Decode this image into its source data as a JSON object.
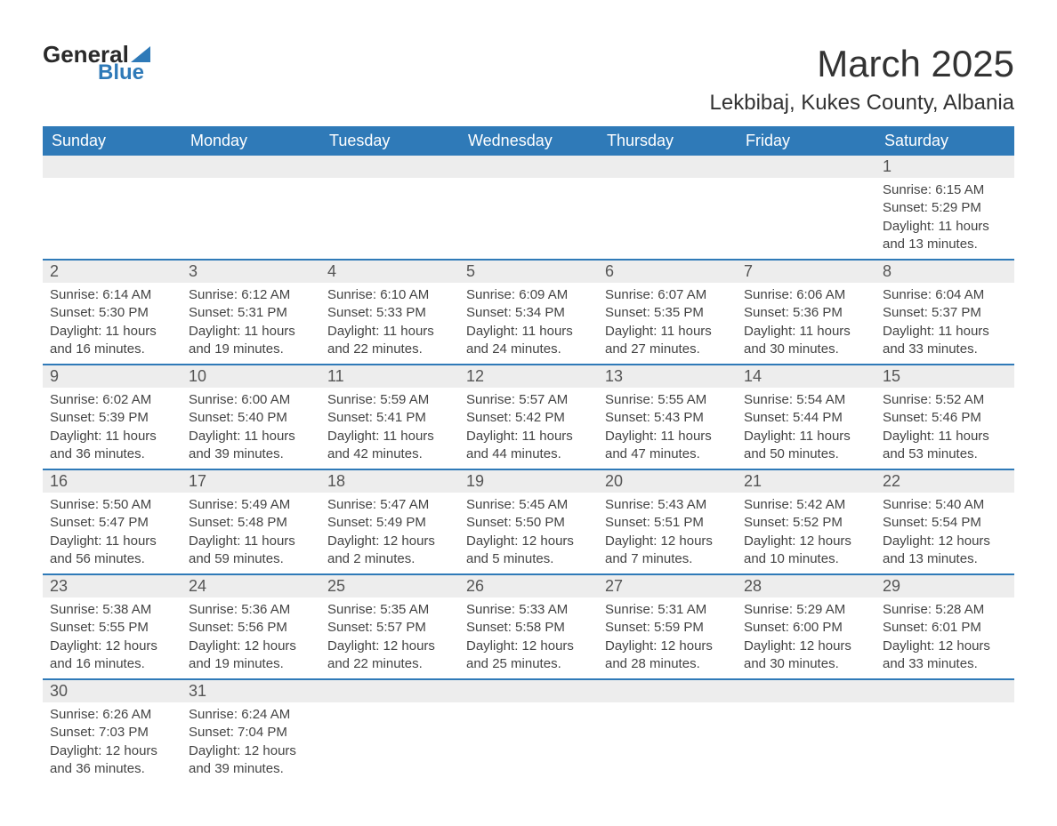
{
  "logo": {
    "word1": "General",
    "word2": "Blue"
  },
  "title": "March 2025",
  "location": "Lekbibaj, Kukes County, Albania",
  "colors": {
    "header_bg": "#2f7ab8",
    "header_text": "#ffffff",
    "daynum_bg": "#ededed",
    "border": "#2f7ab8",
    "body_bg": "#ffffff",
    "text": "#333333"
  },
  "fonts": {
    "title_size": 42,
    "location_size": 24,
    "header_size": 18,
    "daynum_size": 18,
    "detail_size": 15
  },
  "day_headers": [
    "Sunday",
    "Monday",
    "Tuesday",
    "Wednesday",
    "Thursday",
    "Friday",
    "Saturday"
  ],
  "weeks": [
    [
      null,
      null,
      null,
      null,
      null,
      null,
      {
        "n": "1",
        "sunrise": "Sunrise: 6:15 AM",
        "sunset": "Sunset: 5:29 PM",
        "dl1": "Daylight: 11 hours",
        "dl2": "and 13 minutes."
      }
    ],
    [
      {
        "n": "2",
        "sunrise": "Sunrise: 6:14 AM",
        "sunset": "Sunset: 5:30 PM",
        "dl1": "Daylight: 11 hours",
        "dl2": "and 16 minutes."
      },
      {
        "n": "3",
        "sunrise": "Sunrise: 6:12 AM",
        "sunset": "Sunset: 5:31 PM",
        "dl1": "Daylight: 11 hours",
        "dl2": "and 19 minutes."
      },
      {
        "n": "4",
        "sunrise": "Sunrise: 6:10 AM",
        "sunset": "Sunset: 5:33 PM",
        "dl1": "Daylight: 11 hours",
        "dl2": "and 22 minutes."
      },
      {
        "n": "5",
        "sunrise": "Sunrise: 6:09 AM",
        "sunset": "Sunset: 5:34 PM",
        "dl1": "Daylight: 11 hours",
        "dl2": "and 24 minutes."
      },
      {
        "n": "6",
        "sunrise": "Sunrise: 6:07 AM",
        "sunset": "Sunset: 5:35 PM",
        "dl1": "Daylight: 11 hours",
        "dl2": "and 27 minutes."
      },
      {
        "n": "7",
        "sunrise": "Sunrise: 6:06 AM",
        "sunset": "Sunset: 5:36 PM",
        "dl1": "Daylight: 11 hours",
        "dl2": "and 30 minutes."
      },
      {
        "n": "8",
        "sunrise": "Sunrise: 6:04 AM",
        "sunset": "Sunset: 5:37 PM",
        "dl1": "Daylight: 11 hours",
        "dl2": "and 33 minutes."
      }
    ],
    [
      {
        "n": "9",
        "sunrise": "Sunrise: 6:02 AM",
        "sunset": "Sunset: 5:39 PM",
        "dl1": "Daylight: 11 hours",
        "dl2": "and 36 minutes."
      },
      {
        "n": "10",
        "sunrise": "Sunrise: 6:00 AM",
        "sunset": "Sunset: 5:40 PM",
        "dl1": "Daylight: 11 hours",
        "dl2": "and 39 minutes."
      },
      {
        "n": "11",
        "sunrise": "Sunrise: 5:59 AM",
        "sunset": "Sunset: 5:41 PM",
        "dl1": "Daylight: 11 hours",
        "dl2": "and 42 minutes."
      },
      {
        "n": "12",
        "sunrise": "Sunrise: 5:57 AM",
        "sunset": "Sunset: 5:42 PM",
        "dl1": "Daylight: 11 hours",
        "dl2": "and 44 minutes."
      },
      {
        "n": "13",
        "sunrise": "Sunrise: 5:55 AM",
        "sunset": "Sunset: 5:43 PM",
        "dl1": "Daylight: 11 hours",
        "dl2": "and 47 minutes."
      },
      {
        "n": "14",
        "sunrise": "Sunrise: 5:54 AM",
        "sunset": "Sunset: 5:44 PM",
        "dl1": "Daylight: 11 hours",
        "dl2": "and 50 minutes."
      },
      {
        "n": "15",
        "sunrise": "Sunrise: 5:52 AM",
        "sunset": "Sunset: 5:46 PM",
        "dl1": "Daylight: 11 hours",
        "dl2": "and 53 minutes."
      }
    ],
    [
      {
        "n": "16",
        "sunrise": "Sunrise: 5:50 AM",
        "sunset": "Sunset: 5:47 PM",
        "dl1": "Daylight: 11 hours",
        "dl2": "and 56 minutes."
      },
      {
        "n": "17",
        "sunrise": "Sunrise: 5:49 AM",
        "sunset": "Sunset: 5:48 PM",
        "dl1": "Daylight: 11 hours",
        "dl2": "and 59 minutes."
      },
      {
        "n": "18",
        "sunrise": "Sunrise: 5:47 AM",
        "sunset": "Sunset: 5:49 PM",
        "dl1": "Daylight: 12 hours",
        "dl2": "and 2 minutes."
      },
      {
        "n": "19",
        "sunrise": "Sunrise: 5:45 AM",
        "sunset": "Sunset: 5:50 PM",
        "dl1": "Daylight: 12 hours",
        "dl2": "and 5 minutes."
      },
      {
        "n": "20",
        "sunrise": "Sunrise: 5:43 AM",
        "sunset": "Sunset: 5:51 PM",
        "dl1": "Daylight: 12 hours",
        "dl2": "and 7 minutes."
      },
      {
        "n": "21",
        "sunrise": "Sunrise: 5:42 AM",
        "sunset": "Sunset: 5:52 PM",
        "dl1": "Daylight: 12 hours",
        "dl2": "and 10 minutes."
      },
      {
        "n": "22",
        "sunrise": "Sunrise: 5:40 AM",
        "sunset": "Sunset: 5:54 PM",
        "dl1": "Daylight: 12 hours",
        "dl2": "and 13 minutes."
      }
    ],
    [
      {
        "n": "23",
        "sunrise": "Sunrise: 5:38 AM",
        "sunset": "Sunset: 5:55 PM",
        "dl1": "Daylight: 12 hours",
        "dl2": "and 16 minutes."
      },
      {
        "n": "24",
        "sunrise": "Sunrise: 5:36 AM",
        "sunset": "Sunset: 5:56 PM",
        "dl1": "Daylight: 12 hours",
        "dl2": "and 19 minutes."
      },
      {
        "n": "25",
        "sunrise": "Sunrise: 5:35 AM",
        "sunset": "Sunset: 5:57 PM",
        "dl1": "Daylight: 12 hours",
        "dl2": "and 22 minutes."
      },
      {
        "n": "26",
        "sunrise": "Sunrise: 5:33 AM",
        "sunset": "Sunset: 5:58 PM",
        "dl1": "Daylight: 12 hours",
        "dl2": "and 25 minutes."
      },
      {
        "n": "27",
        "sunrise": "Sunrise: 5:31 AM",
        "sunset": "Sunset: 5:59 PM",
        "dl1": "Daylight: 12 hours",
        "dl2": "and 28 minutes."
      },
      {
        "n": "28",
        "sunrise": "Sunrise: 5:29 AM",
        "sunset": "Sunset: 6:00 PM",
        "dl1": "Daylight: 12 hours",
        "dl2": "and 30 minutes."
      },
      {
        "n": "29",
        "sunrise": "Sunrise: 5:28 AM",
        "sunset": "Sunset: 6:01 PM",
        "dl1": "Daylight: 12 hours",
        "dl2": "and 33 minutes."
      }
    ],
    [
      {
        "n": "30",
        "sunrise": "Sunrise: 6:26 AM",
        "sunset": "Sunset: 7:03 PM",
        "dl1": "Daylight: 12 hours",
        "dl2": "and 36 minutes."
      },
      {
        "n": "31",
        "sunrise": "Sunrise: 6:24 AM",
        "sunset": "Sunset: 7:04 PM",
        "dl1": "Daylight: 12 hours",
        "dl2": "and 39 minutes."
      },
      null,
      null,
      null,
      null,
      null
    ]
  ]
}
